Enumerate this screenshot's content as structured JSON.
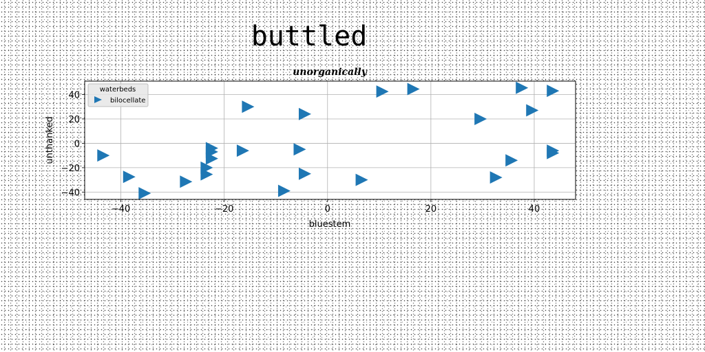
{
  "chart_data": {
    "type": "scatter",
    "suptitle": "buttled",
    "title": "unorganically",
    "xlabel": "bluestem",
    "ylabel": "unthanked",
    "xlim": [
      -47,
      48
    ],
    "ylim": [
      -46,
      51
    ],
    "xticks": [
      -40,
      -20,
      0,
      20,
      40
    ],
    "yticks": [
      -40,
      -20,
      0,
      20,
      40
    ],
    "grid": true,
    "legend": {
      "title": "waterbeds",
      "placement": "top-left"
    },
    "marker_color": "#1f77b4",
    "series": [
      {
        "name": "bilocellate",
        "marker": "triangle-right",
        "points": [
          [
            -43.5,
            -10
          ],
          [
            -38.5,
            -27.5
          ],
          [
            -35.5,
            -41
          ],
          [
            -27.5,
            -31.5
          ],
          [
            -23.5,
            -20
          ],
          [
            -23.5,
            -25.5
          ],
          [
            -22.5,
            -7
          ],
          [
            -22.5,
            -4
          ],
          [
            -22.5,
            -12.5
          ],
          [
            -16.5,
            -6
          ],
          [
            -15.5,
            30
          ],
          [
            -8.5,
            -39
          ],
          [
            -5.5,
            -5
          ],
          [
            -4.5,
            24
          ],
          [
            -4.5,
            -25
          ],
          [
            6.5,
            -30
          ],
          [
            10.5,
            42.5
          ],
          [
            16.5,
            44.5
          ],
          [
            29.5,
            20
          ],
          [
            32.5,
            -28
          ],
          [
            35.5,
            -14
          ],
          [
            37.5,
            45.5
          ],
          [
            39.5,
            27
          ],
          [
            43.5,
            43
          ],
          [
            43.5,
            -6
          ],
          [
            43.5,
            -8
          ]
        ]
      }
    ]
  }
}
